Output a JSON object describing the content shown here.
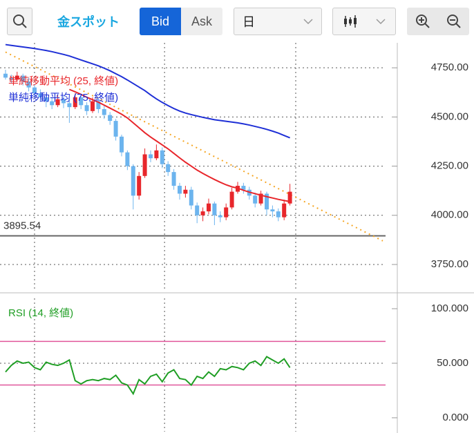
{
  "toolbar": {
    "symbol": "金スポット",
    "bid": "Bid",
    "ask": "Ask",
    "period": "日"
  },
  "chart_data": [
    {
      "type": "candlestick",
      "up_color": "#e8262b",
      "down_color": "#6cb4ee",
      "xlim": [
        -0.95,
        67.5
      ],
      "xticks": [
        5,
        27.4,
        50
      ],
      "ylim": [
        3620,
        4877
      ],
      "yticks": [
        {
          "value": 3750,
          "label": "3750.00"
        },
        {
          "value": 4000,
          "label": "4000.00"
        },
        {
          "value": 4250,
          "label": "4250.00"
        },
        {
          "value": 4500,
          "label": "4500.00"
        },
        {
          "value": 4750,
          "label": "4750.00"
        }
      ],
      "grid": true,
      "reference_line": 3895.54,
      "trendline": {
        "color": "#f5a623",
        "x": [
          0,
          65
        ],
        "values": [
          4830,
          3870
        ]
      },
      "open": [
        4720,
        4700,
        4690,
        4710,
        4680,
        4650,
        4620,
        4600,
        4580,
        4560,
        4590,
        4570,
        4550,
        4600,
        4560,
        4530,
        4580,
        4540,
        4510,
        4480,
        4400,
        4320,
        4250,
        4100,
        4200,
        4310,
        4290,
        4330,
        4260,
        4220,
        4150,
        4110,
        4130,
        4050,
        4000,
        4020,
        4060,
        4000,
        3990,
        4040,
        4120,
        4150,
        4130,
        4100,
        4060,
        4110,
        4030,
        4020,
        3990,
        4060
      ],
      "high": [
        4740,
        4715,
        4730,
        4720,
        4700,
        4665,
        4640,
        4615,
        4600,
        4610,
        4605,
        4590,
        4620,
        4610,
        4575,
        4600,
        4595,
        4560,
        4525,
        4490,
        4410,
        4330,
        4260,
        4220,
        4340,
        4330,
        4360,
        4345,
        4275,
        4235,
        4165,
        4150,
        4145,
        4065,
        4040,
        4085,
        4070,
        4020,
        4060,
        4140,
        4170,
        4165,
        4145,
        4115,
        4125,
        4120,
        4050,
        4035,
        4080,
        4160
      ],
      "low": [
        4690,
        4670,
        4680,
        4660,
        4630,
        4600,
        4580,
        4550,
        4540,
        4550,
        4545,
        4470,
        4540,
        4540,
        4510,
        4520,
        4520,
        4490,
        4460,
        4380,
        4300,
        4230,
        4030,
        4080,
        4190,
        4270,
        4280,
        4240,
        4200,
        4130,
        4080,
        4090,
        4030,
        3960,
        3970,
        4005,
        3950,
        3965,
        3975,
        4030,
        4110,
        4110,
        4080,
        4040,
        4050,
        4000,
        3990,
        3970,
        3975,
        4050
      ],
      "close": [
        4700,
        4690,
        4710,
        4680,
        4650,
        4620,
        4600,
        4580,
        4560,
        4590,
        4570,
        4550,
        4600,
        4560,
        4530,
        4580,
        4540,
        4510,
        4480,
        4400,
        4320,
        4250,
        4100,
        4200,
        4310,
        4290,
        4330,
        4260,
        4220,
        4150,
        4110,
        4130,
        4050,
        4000,
        4020,
        4060,
        4000,
        3990,
        4040,
        4120,
        4150,
        4130,
        4100,
        4060,
        4110,
        4030,
        4020,
        3990,
        4060,
        4120
      ],
      "series": [
        {
          "name": "単純移動平均 (25, 終値)",
          "color": "#e8262b",
          "values": [
            null,
            null,
            null,
            null,
            null,
            null,
            null,
            null,
            null,
            null,
            null,
            4640,
            4628,
            4615,
            4600,
            4588,
            4575,
            4560,
            4545,
            4530,
            4514,
            4495,
            4470,
            4445,
            4420,
            4398,
            4378,
            4358,
            4338,
            4315,
            4292,
            4270,
            4250,
            4230,
            4213,
            4197,
            4182,
            4168,
            4155,
            4145,
            4138,
            4127,
            4118,
            4110,
            4102,
            4095,
            4088,
            4081,
            4075,
            4070
          ]
        },
        {
          "name": "単純移動平均 (75, 終値)",
          "color": "#1e2fd6",
          "values": [
            4868,
            4864,
            4860,
            4856,
            4852,
            4848,
            4843,
            4838,
            4832,
            4825,
            4818,
            4810,
            4800,
            4790,
            4780,
            4770,
            4760,
            4748,
            4735,
            4720,
            4705,
            4688,
            4670,
            4652,
            4634,
            4612,
            4592,
            4574,
            4558,
            4543,
            4530,
            4520,
            4512,
            4505,
            4498,
            4492,
            4486,
            4482,
            4478,
            4474,
            4470,
            4465,
            4459,
            4452,
            4445,
            4437,
            4428,
            4418,
            4406,
            4394
          ]
        }
      ]
    },
    {
      "type": "line",
      "xlim": [
        -0.95,
        67.5
      ],
      "xticks": [
        5,
        27.4,
        50
      ],
      "ylim": [
        -12.7,
        109.5
      ],
      "yticks": [
        {
          "value": 0,
          "label": "0.000"
        },
        {
          "value": 50,
          "label": "50.000"
        },
        {
          "value": 100,
          "label": "100.000"
        }
      ],
      "hlines": [
        70,
        30
      ],
      "hline_color": "#e0559a",
      "series": [
        {
          "name": "RSI (14, 終値)",
          "color": "#1f9e24",
          "values": [
            42,
            48,
            52,
            50,
            51,
            46,
            44,
            51,
            49,
            48,
            50,
            53,
            34,
            31,
            34,
            35,
            34,
            36,
            35,
            39,
            32,
            30,
            22,
            35,
            31,
            38,
            40,
            33,
            41,
            44,
            36,
            35,
            30,
            38,
            36,
            42,
            38,
            45,
            44,
            47,
            46,
            44,
            50,
            52,
            48,
            56,
            53,
            50,
            54,
            46
          ]
        }
      ]
    }
  ]
}
